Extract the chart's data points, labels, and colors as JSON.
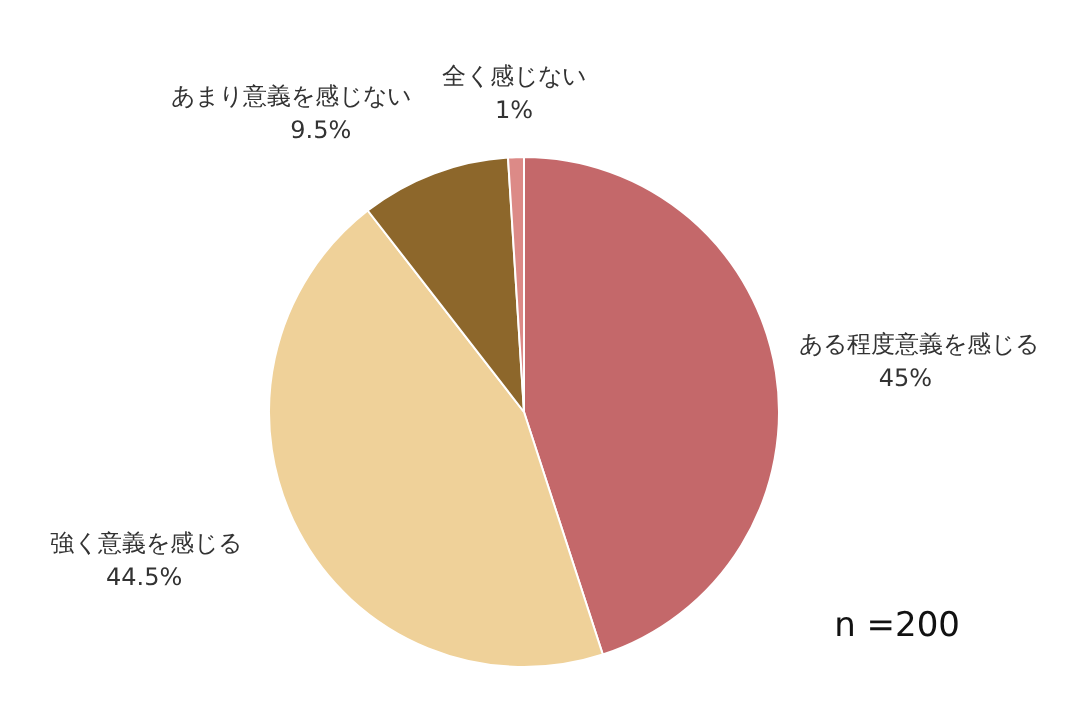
{
  "chart_data": {
    "type": "pie",
    "categories": [
      "ある程度意義を感じる",
      "強く意義を感じる",
      "あまり意義を感じない",
      "全く感じない"
    ],
    "values": [
      45,
      44.5,
      9.5,
      1
    ],
    "value_labels": [
      "45%",
      "44.5%",
      "9.5%",
      "1%"
    ],
    "colors": [
      "#c4686a",
      "#efd199",
      "#8d672b",
      "#dc8a87"
    ],
    "annotations": [
      "n =200"
    ]
  }
}
